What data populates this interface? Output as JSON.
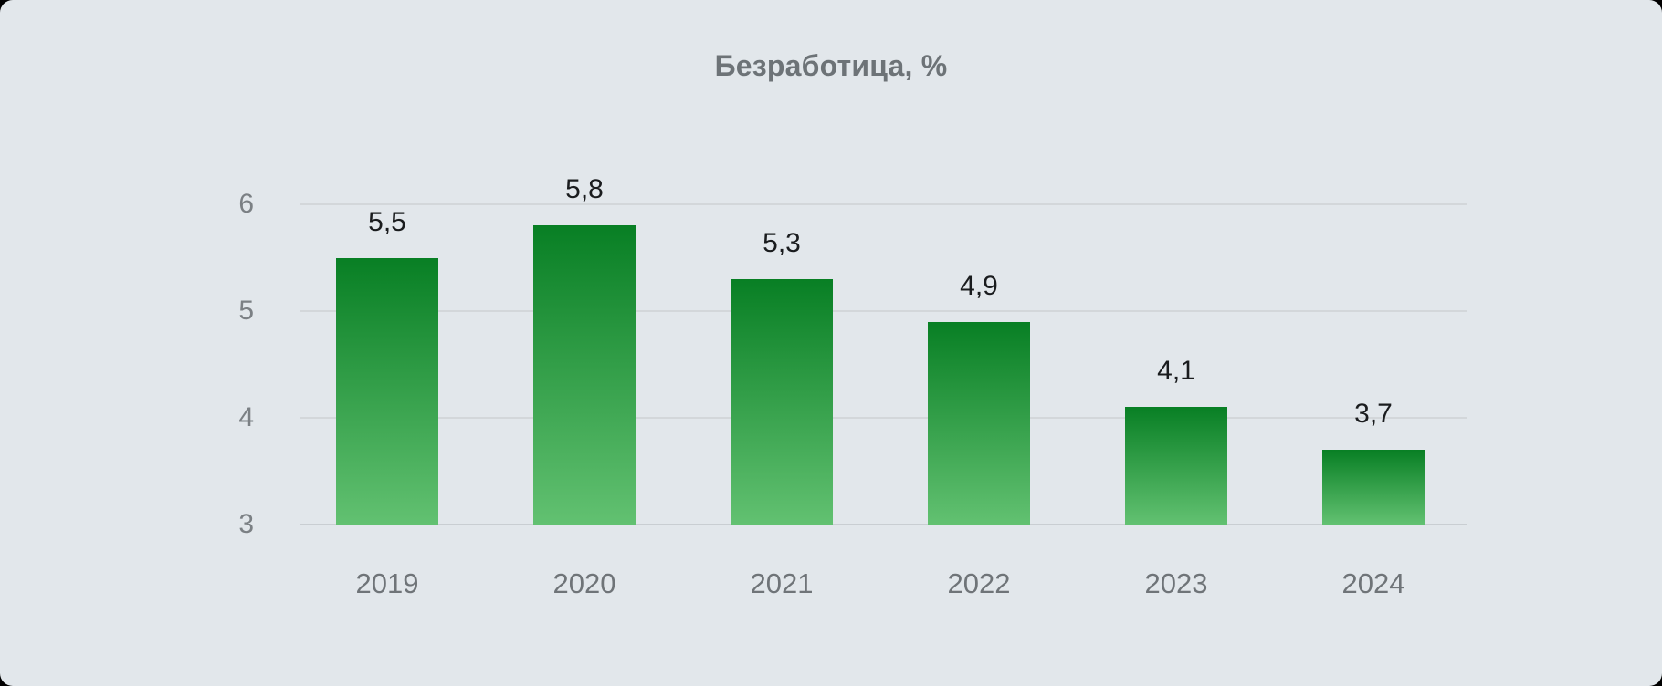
{
  "chart_data": {
    "type": "bar",
    "title": "Безработица, %",
    "categories": [
      "2019",
      "2020",
      "2021",
      "2022",
      "2023",
      "2024"
    ],
    "values": [
      5.5,
      5.8,
      5.3,
      4.9,
      4.1,
      3.7
    ],
    "value_labels": [
      "5,5",
      "5,8",
      "5,3",
      "4,9",
      "4,1",
      "3,7"
    ],
    "xlabel": "",
    "ylabel": "",
    "ylim": [
      3,
      6
    ],
    "yticks": [
      3,
      4,
      5,
      6
    ],
    "ytick_labels": [
      "3",
      "4",
      "5",
      "6"
    ],
    "grid": "horizontal-only",
    "legend": "none",
    "bar_gradient": "dark-green-top-to-light-green-bottom",
    "colors": {
      "background": "#e2e7eb",
      "gridline": "#d3d7da",
      "baseline": "#c9ced2",
      "bar_gradient_top": "#087f24",
      "bar_gradient_bottom": "#62c171",
      "title_text": "#6d7377",
      "axis_text": "#7b8084",
      "category_text": "#6f7478",
      "value_text": "#1a1c1e"
    }
  }
}
